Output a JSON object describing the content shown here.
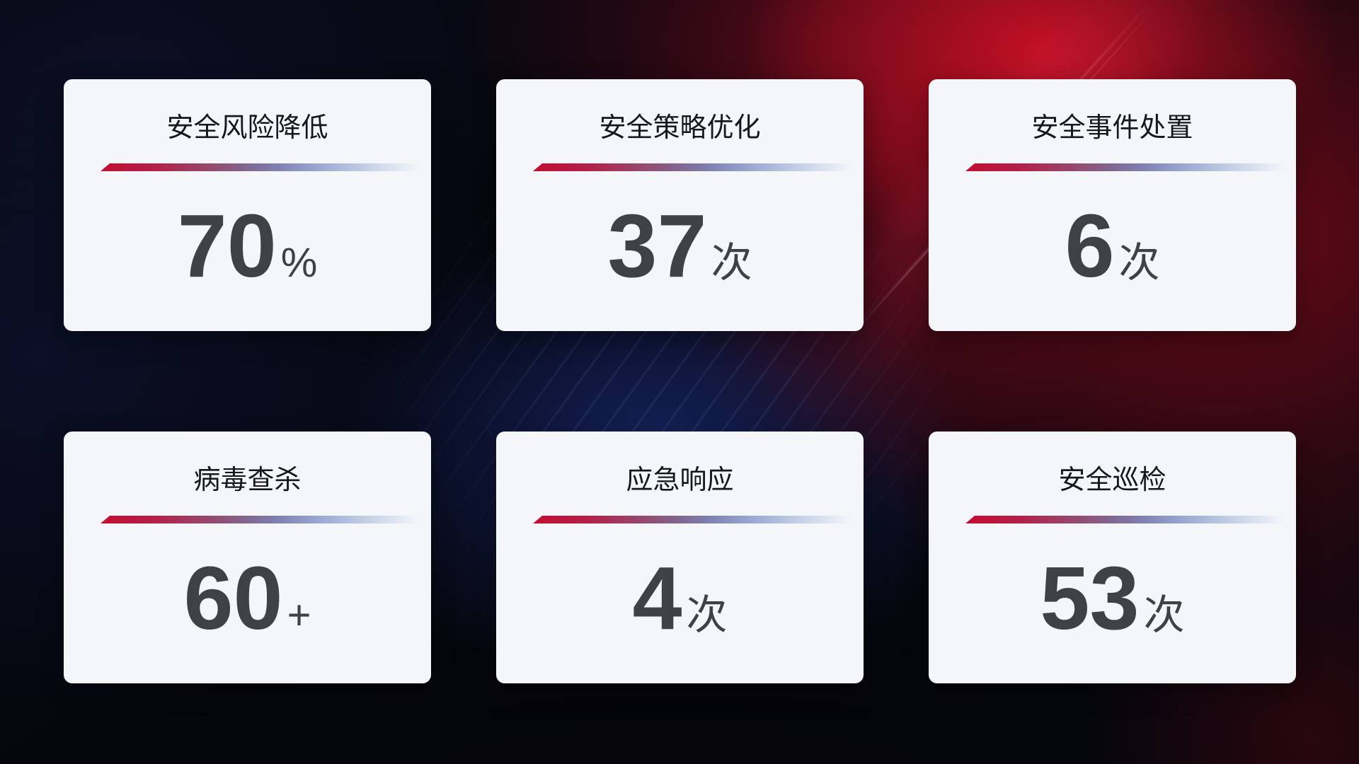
{
  "dashboard": {
    "description": "security-operations-kpi-cards"
  },
  "cards": [
    {
      "title": "安全风险降低",
      "value": "70",
      "unit": "%"
    },
    {
      "title": "安全策略优化",
      "value": "37",
      "unit": "次"
    },
    {
      "title": "安全事件处置",
      "value": "6",
      "unit": "次"
    },
    {
      "title": "病毒查杀",
      "value": "60",
      "unit": "+"
    },
    {
      "title": "应急响应",
      "value": "4",
      "unit": "次"
    },
    {
      "title": "安全巡检",
      "value": "53",
      "unit": "次"
    }
  ],
  "colors": {
    "card_background": "#f5f6fa",
    "title_text": "#17181d",
    "value_text": "#3f4147",
    "divider_start_red": "#c30d31",
    "divider_mid_purple": "#7f7fae",
    "divider_end_blue": "#ccd6ea",
    "background_base": "#06070f",
    "background_red_glow": "#c81024",
    "background_blue_glow": "#1e3288"
  }
}
